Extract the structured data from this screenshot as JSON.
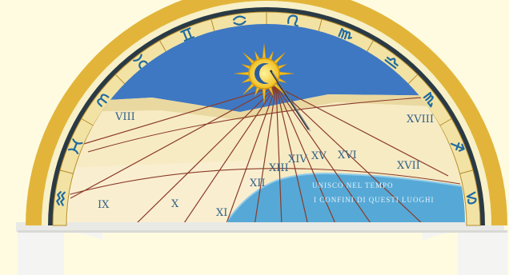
{
  "sundial": {
    "hours": [
      {
        "label": "VIII"
      },
      {
        "label": "IX"
      },
      {
        "label": "X"
      },
      {
        "label": "XI"
      },
      {
        "label": "XII"
      },
      {
        "label": "XIII"
      },
      {
        "label": "XIV"
      },
      {
        "label": "XV"
      },
      {
        "label": "XVI"
      },
      {
        "label": "XVII"
      },
      {
        "label": "XVIII"
      }
    ],
    "motto": {
      "line1": "UNISCO NEL TEMPO",
      "line2": "I CONFINI DI QUESTI LUOGHI"
    },
    "colors": {
      "background": "#fffbe0",
      "frame_gold": "#e2b53a",
      "sky_blue": "#3f78c2",
      "sea_blue": "#56a9d6",
      "dial_cream": "#f4e5b4",
      "band_cream": "#f2e3a4",
      "sun_gold": "#f0c020",
      "lines": "#8a3a2a",
      "base_white": "#f4f4f2"
    },
    "zodiac_icons": [
      "aquarius-icon",
      "pisces-icon",
      "aries-icon",
      "taurus-icon",
      "gemini-icon",
      "cancer-icon",
      "leo-icon",
      "virgo-icon",
      "libra-icon",
      "scorpio-icon",
      "sagittarius-icon",
      "capricorn-icon"
    ]
  }
}
